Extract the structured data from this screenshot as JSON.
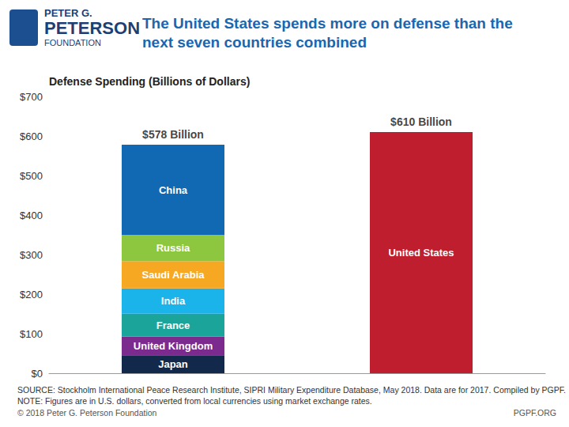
{
  "header": {
    "logo": [
      "PETER G.",
      "PETERSON",
      "FOUNDATION"
    ]
  },
  "chart_data": {
    "type": "bar",
    "stacked": true,
    "title": "The United States spends more on defense than the next seven countries combined",
    "y_label": "Defense Spending (Billions of Dollars)",
    "categories": [
      null,
      null
    ],
    "series": [
      {
        "name": "Japan",
        "color": "#13294b",
        "values": [
          45.4,
          null
        ]
      },
      {
        "name": "United Kingdom",
        "color": "#7b2a8e",
        "values": [
          47.2,
          null
        ]
      },
      {
        "name": "France",
        "color": "#1ba49a",
        "values": [
          57.8,
          null
        ]
      },
      {
        "name": "India",
        "color": "#1ab3ea",
        "values": [
          63.9,
          null
        ]
      },
      {
        "name": "Saudi Arabia",
        "color": "#f7a823",
        "values": [
          69.4,
          null
        ]
      },
      {
        "name": "Russia",
        "color": "#8dc63f",
        "values": [
          66.3,
          null
        ]
      },
      {
        "name": "China",
        "color": "#1168b3",
        "values": [
          228,
          null
        ]
      },
      {
        "name": "United States",
        "color": "#be1e2d",
        "values": [
          null,
          610
        ]
      }
    ],
    "annotations": [
      {
        "x": 0,
        "y": 578,
        "text": "$578 Billion"
      },
      {
        "x": 1,
        "y": 610,
        "text": "$610 Billion"
      }
    ],
    "ylim": [
      0,
      700
    ],
    "yticks": [
      {
        "value": 0,
        "label": "$0"
      },
      {
        "value": 100,
        "label": "$100"
      },
      {
        "value": 200,
        "label": "$200"
      },
      {
        "value": 300,
        "label": "$300"
      },
      {
        "value": 400,
        "label": "$400"
      },
      {
        "value": 500,
        "label": "$500"
      },
      {
        "value": 600,
        "label": "$600"
      },
      {
        "value": 700,
        "label": "$700"
      }
    ],
    "grid": false,
    "tick_labels": "y"
  },
  "footer": {
    "source": "SOURCE: Stockholm International Peace Research Institute, SIPRI Military Expenditure Database, May 2018. Data are for 2017. Compiled by PGPF.",
    "note": "NOTE: Figures are in U.S. dollars, converted from local currencies using market exchange rates.",
    "copyright": "© 2018 Peter G. Peterson Foundation",
    "website": "PGPF.ORG"
  }
}
